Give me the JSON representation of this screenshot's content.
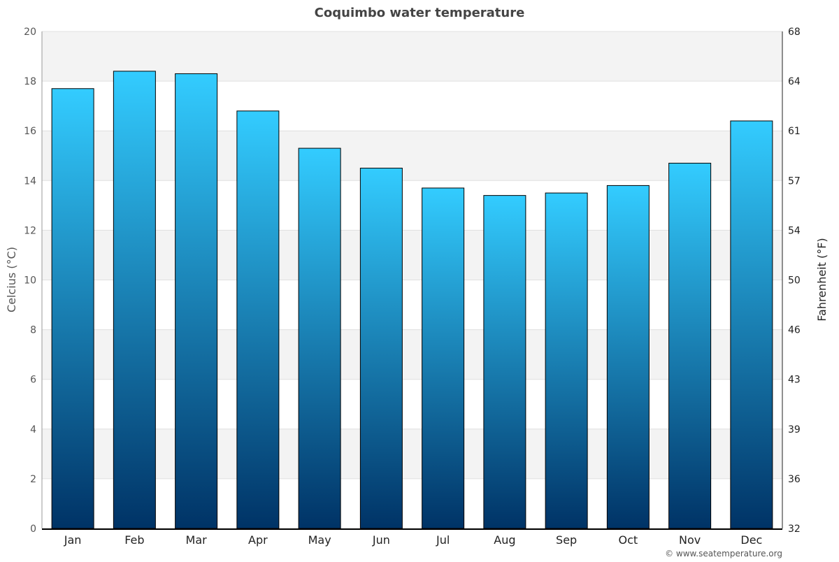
{
  "chart_data": {
    "type": "bar",
    "title": "Coquimbo water temperature",
    "ylabel": "Celcius (°C)",
    "y2label": "Fahrenheit (°F)",
    "categories": [
      "Jan",
      "Feb",
      "Mar",
      "Apr",
      "May",
      "Jun",
      "Jul",
      "Aug",
      "Sep",
      "Oct",
      "Nov",
      "Dec"
    ],
    "values": [
      17.7,
      18.4,
      18.3,
      16.8,
      15.3,
      14.5,
      13.7,
      13.4,
      13.5,
      13.8,
      14.7,
      16.4
    ],
    "ylim": [
      0,
      20
    ],
    "yticks": [
      "0",
      "2",
      "4",
      "6",
      "8",
      "10",
      "12",
      "14",
      "16",
      "18",
      "20"
    ],
    "y2ticks": [
      "32",
      "36",
      "39",
      "43",
      "46",
      "50",
      "54",
      "57",
      "61",
      "64",
      "68"
    ],
    "grid": true,
    "colors": {
      "bar_top": "#33ccff",
      "bar_bottom": "#003366",
      "band": "#f3f3f3"
    }
  },
  "credit": "© www.seatemperature.org"
}
